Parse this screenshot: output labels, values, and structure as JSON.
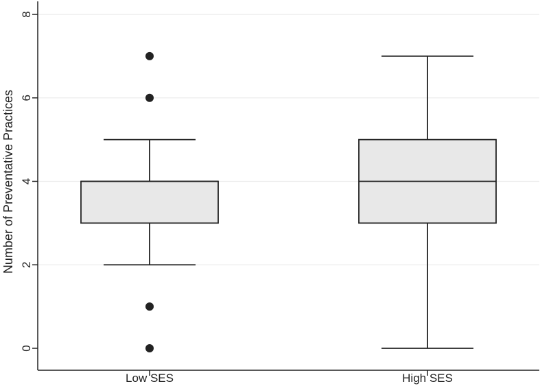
{
  "chart_data": {
    "type": "boxplot",
    "ylabel": "Number of Preventative Practices",
    "xlabel": "",
    "ylim": [
      0,
      8
    ],
    "yticks": [
      0,
      2,
      4,
      6,
      8
    ],
    "grid": true,
    "colors": {
      "box_fill": "#e8e8e8",
      "stroke": "#222222",
      "grid": "#ebebeb"
    },
    "groups": [
      {
        "label": "Low SES",
        "whisker_low": 2,
        "q1": 3,
        "median": 4,
        "q3": 4,
        "whisker_high": 5,
        "outliers": [
          0,
          1,
          6,
          7
        ]
      },
      {
        "label": "High SES",
        "whisker_low": 0,
        "q1": 3,
        "median": 4,
        "q3": 5,
        "whisker_high": 7,
        "outliers": []
      }
    ]
  }
}
